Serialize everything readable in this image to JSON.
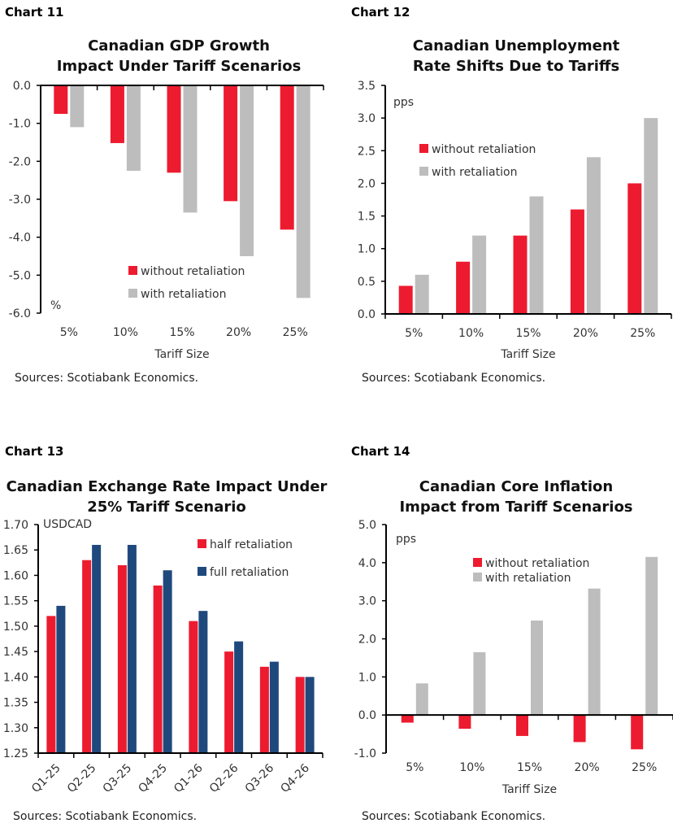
{
  "chart_data": [
    {
      "chart_label": "Chart 11",
      "type": "bar",
      "title": [
        "Canadian GDP Growth",
        "Impact Under Tariff Scenarios"
      ],
      "xlabel": "Tariff Size",
      "unit_label": "%",
      "categories": [
        "5%",
        "10%",
        "15%",
        "20%",
        "25%"
      ],
      "ylim": [
        -6.0,
        0.0
      ],
      "yticks": [
        "0.0",
        "-1.0",
        "-2.0",
        "-3.0",
        "-4.0",
        "-5.0",
        "-6.0"
      ],
      "legend": "bottom-center",
      "series": [
        {
          "name": "without retaliation",
          "color": "#ed1b2f",
          "values": [
            -0.75,
            -1.52,
            -2.3,
            -3.05,
            -3.8
          ]
        },
        {
          "name": "with retaliation",
          "color": "#bdbdbd",
          "values": [
            -1.1,
            -2.25,
            -3.35,
            -4.5,
            -5.6
          ]
        }
      ],
      "source": "Sources: Scotiabank Economics."
    },
    {
      "chart_label": "Chart 12",
      "type": "bar",
      "title": [
        "Canadian Unemployment",
        "Rate Shifts Due to Tariffs"
      ],
      "xlabel": "Tariff Size",
      "unit_label": "pps",
      "categories": [
        "5%",
        "10%",
        "15%",
        "20%",
        "25%"
      ],
      "ylim": [
        0.0,
        3.5
      ],
      "yticks": [
        "3.5",
        "3.0",
        "2.5",
        "2.0",
        "1.5",
        "1.0",
        "0.5",
        "0.0"
      ],
      "legend": "top-left",
      "series": [
        {
          "name": "without retaliation",
          "color": "#ed1b2f",
          "values": [
            0.43,
            0.8,
            1.2,
            1.6,
            2.0
          ]
        },
        {
          "name": "with retaliation",
          "color": "#bdbdbd",
          "values": [
            0.6,
            1.2,
            1.8,
            2.4,
            3.0
          ]
        }
      ],
      "source": "Sources: Scotiabank Economics."
    },
    {
      "chart_label": "Chart 13",
      "type": "bar",
      "title": [
        "Canadian Exchange Rate Impact Under",
        "25% Tariff Scenario"
      ],
      "xlabel": "",
      "unit_label": "USDCAD",
      "categories": [
        "Q1-25",
        "Q2-25",
        "Q3-25",
        "Q4-25",
        "Q1-26",
        "Q2-26",
        "Q3-26",
        "Q4-26"
      ],
      "ylim": [
        1.25,
        1.7
      ],
      "yticks": [
        "1.70",
        "1.65",
        "1.60",
        "1.55",
        "1.50",
        "1.45",
        "1.40",
        "1.35",
        "1.30",
        "1.25"
      ],
      "legend": "top-right",
      "series": [
        {
          "name": "half retaliation",
          "color": "#ed1b2f",
          "values": [
            1.52,
            1.63,
            1.62,
            1.58,
            1.51,
            1.45,
            1.42,
            1.4
          ]
        },
        {
          "name": "full retaliation",
          "color": "#1f497d",
          "values": [
            1.54,
            1.66,
            1.66,
            1.61,
            1.53,
            1.47,
            1.43,
            1.4
          ]
        }
      ],
      "source": "Sources: Scotiabank Economics."
    },
    {
      "chart_label": "Chart 14",
      "type": "bar",
      "title": [
        "Canadian Core Inflation",
        "Impact from Tariff Scenarios"
      ],
      "xlabel": "Tariff Size",
      "unit_label": "pps",
      "categories": [
        "5%",
        "10%",
        "15%",
        "20%",
        "25%"
      ],
      "ylim": [
        -1.0,
        5.0
      ],
      "yticks": [
        "5.0",
        "4.0",
        "3.0",
        "2.0",
        "1.0",
        "0.0",
        "-1.0"
      ],
      "legend": "top-center",
      "series": [
        {
          "name": "without retaliation",
          "color": "#ed1b2f",
          "values": [
            -0.2,
            -0.36,
            -0.55,
            -0.71,
            -0.9
          ]
        },
        {
          "name": "with retaliation",
          "color": "#bdbdbd",
          "values": [
            0.83,
            1.65,
            2.48,
            3.32,
            4.15
          ]
        }
      ],
      "source": "Sources: Scotiabank Economics."
    }
  ]
}
